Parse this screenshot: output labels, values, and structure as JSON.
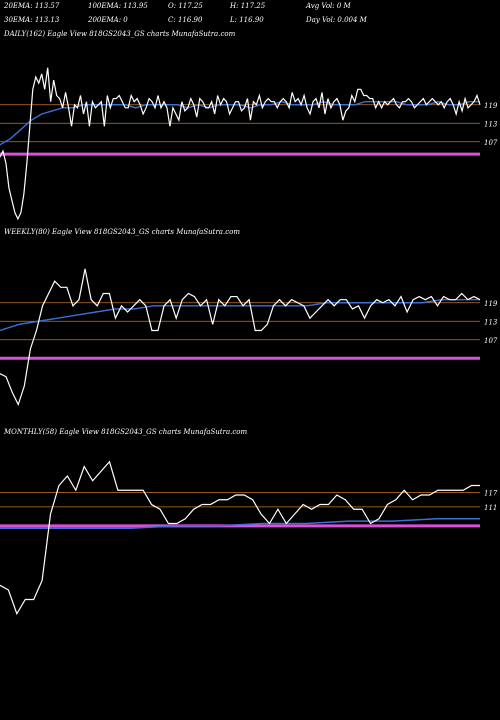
{
  "header": {
    "row1": [
      "20EMA: 113.57",
      "100EMA: 113.95",
      "O: 117.25",
      "H: 117.25",
      "Avg Vol: 0  M"
    ],
    "row2": [
      "30EMA: 113.13",
      "200EMA: 0",
      "C: 116.90",
      "L: 116.90",
      "Day Vol: 0.004  M"
    ]
  },
  "chart_data": [
    {
      "type": "line",
      "label": "DAILY(162) Eagle  View  818GS2043_GS charts MunafaSutra.com",
      "y_ticks": [
        "119",
        "113",
        "107"
      ],
      "ylim": [
        80,
        140
      ],
      "colors": {
        "price": "#ffffff",
        "ema": "#3b6fd6",
        "level": "#c8742a",
        "support": "#d94fd9"
      },
      "price": [
        102,
        104,
        100,
        92,
        88,
        84,
        82,
        84,
        90,
        100,
        112,
        124,
        128,
        126,
        129,
        124,
        131,
        120,
        127,
        122,
        121,
        118,
        123,
        118,
        112,
        119,
        118,
        122,
        116,
        120,
        112,
        120,
        118,
        119,
        120,
        112,
        122,
        118,
        121,
        121,
        122,
        120,
        118,
        118,
        122,
        120,
        121,
        119,
        116,
        118,
        121,
        120,
        118,
        122,
        118,
        120,
        118,
        112,
        118,
        116,
        114,
        120,
        117,
        118,
        121,
        119,
        115,
        121,
        120,
        118,
        118,
        120,
        116,
        122,
        119,
        121,
        120,
        116,
        118,
        120,
        120,
        117,
        118,
        121,
        114,
        120,
        119,
        122,
        118,
        120,
        121,
        120,
        120,
        118,
        120,
        121,
        120,
        118,
        123,
        120,
        121,
        119,
        122,
        118,
        116,
        120,
        121,
        118,
        123,
        116,
        121,
        118,
        120,
        121,
        119,
        114,
        117,
        118,
        122,
        120,
        124,
        124,
        122,
        122,
        121,
        121,
        118,
        120,
        118,
        120,
        119,
        120,
        121,
        119,
        118,
        120,
        120,
        121,
        120,
        118,
        119,
        120,
        121,
        119,
        120,
        121,
        120,
        119,
        120,
        118,
        120,
        121,
        119,
        116,
        120,
        117,
        121,
        118,
        119,
        120,
        122,
        119
      ],
      "ema": [
        106,
        108,
        111,
        114,
        116,
        117,
        118,
        118,
        119,
        119,
        119,
        119,
        119,
        118,
        119,
        119,
        119,
        119,
        118,
        119,
        118,
        119,
        119,
        119,
        118,
        119,
        119,
        120,
        119,
        119,
        119,
        120,
        119,
        119,
        119,
        120,
        120,
        120,
        120,
        119,
        119,
        119,
        120,
        119,
        119,
        120,
        120
      ],
      "levels": [
        119,
        113,
        107
      ],
      "support": 103
    },
    {
      "type": "line",
      "label": "WEEKLY(80) Eagle  View  818GS2043_GS charts MunafaSutra.com",
      "y_ticks": [
        "119",
        "113",
        "107"
      ],
      "ylim": [
        80,
        140
      ],
      "colors": {
        "price": "#ffffff",
        "ema": "#3b6fd6",
        "level": "#c8742a",
        "support": "#d94fd9"
      },
      "price": [
        96,
        95,
        90,
        86,
        92,
        104,
        110,
        118,
        122,
        126,
        124,
        124,
        118,
        120,
        130,
        120,
        118,
        122,
        122,
        114,
        118,
        116,
        118,
        120,
        118,
        110,
        110,
        118,
        120,
        114,
        120,
        122,
        121,
        118,
        120,
        112,
        120,
        118,
        121,
        121,
        118,
        120,
        110,
        110,
        112,
        118,
        120,
        118,
        120,
        119,
        118,
        114,
        116,
        118,
        120,
        118,
        120,
        120,
        117,
        118,
        114,
        118,
        120,
        119,
        120,
        118,
        121,
        116,
        120,
        121,
        120,
        121,
        118,
        121,
        120,
        120,
        122,
        120,
        121,
        120
      ],
      "ema": [
        110,
        112,
        113,
        114,
        115,
        116,
        117,
        117,
        118,
        118,
        118,
        118,
        118,
        118,
        118,
        118,
        118,
        119,
        119,
        119,
        119,
        119,
        119,
        120,
        120,
        120
      ],
      "levels": [
        119,
        113,
        107
      ],
      "support": 101
    },
    {
      "type": "line",
      "label": "MONTHLY(58) Eagle  View  818GS2043_GS charts MunafaSutra.com",
      "y_ticks": [
        "117",
        "111"
      ],
      "ylim": [
        60,
        140
      ],
      "colors": {
        "price": "#ffffff",
        "ema": "#3b6fd6",
        "level": "#c8742a",
        "support": "#d94fd9"
      },
      "price": [
        78,
        76,
        66,
        72,
        72,
        80,
        108,
        120,
        124,
        118,
        128,
        122,
        126,
        130,
        118,
        118,
        118,
        118,
        112,
        110,
        104,
        104,
        106,
        110,
        112,
        112,
        114,
        114,
        116,
        116,
        114,
        108,
        104,
        110,
        104,
        108,
        112,
        110,
        112,
        112,
        116,
        114,
        110,
        110,
        104,
        106,
        112,
        114,
        118,
        114,
        116,
        116,
        118,
        118,
        118,
        118,
        120,
        120
      ],
      "ema": [
        102,
        102,
        102,
        102,
        103,
        103,
        104,
        104,
        105,
        105,
        106,
        106
      ],
      "levels": [
        117,
        111
      ],
      "support": 103
    }
  ]
}
